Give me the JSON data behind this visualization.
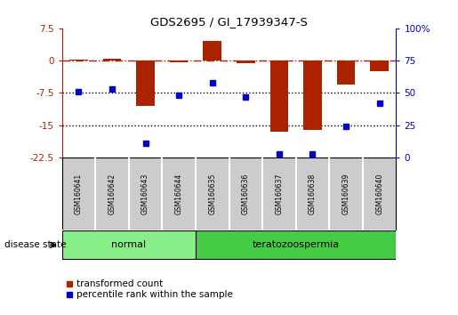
{
  "title": "GDS2695 / GI_17939347-S",
  "samples": [
    "GSM160641",
    "GSM160642",
    "GSM160643",
    "GSM160644",
    "GSM160635",
    "GSM160636",
    "GSM160637",
    "GSM160638",
    "GSM160639",
    "GSM160640"
  ],
  "transformed_count": [
    0.3,
    0.5,
    -10.5,
    -0.3,
    4.5,
    -0.5,
    -16.5,
    -16.0,
    -5.5,
    -2.5
  ],
  "percentile_rank": [
    51,
    53,
    11,
    48,
    58,
    47,
    3,
    3,
    24,
    42
  ],
  "groups": [
    {
      "label": "normal",
      "indices": [
        0,
        1,
        2,
        3
      ],
      "color": "#88ee88"
    },
    {
      "label": "teratozoospermia",
      "indices": [
        4,
        5,
        6,
        7,
        8,
        9
      ],
      "color": "#44cc44"
    }
  ],
  "left_ylim": [
    -22.5,
    7.5
  ],
  "left_yticks": [
    7.5,
    0,
    -7.5,
    -15,
    -22.5
  ],
  "right_ylim": [
    0,
    100
  ],
  "right_yticks": [
    0,
    25,
    50,
    75,
    100
  ],
  "right_yticklabels": [
    "0",
    "25",
    "50",
    "75",
    "100%"
  ],
  "bar_color": "#aa2200",
  "dot_color": "#0000cc",
  "dotted_lines": [
    -7.5,
    -15
  ],
  "background_color": "#ffffff",
  "sample_box_color": "#cccccc",
  "legend_transformed": "transformed count",
  "legend_percentile": "percentile rank within the sample",
  "disease_state_label": "disease state"
}
